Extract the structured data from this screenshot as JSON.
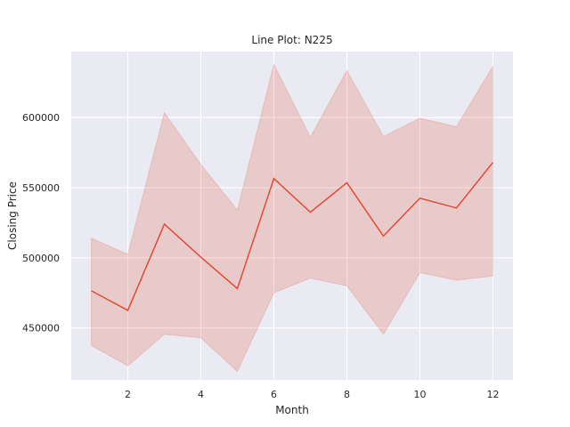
{
  "chart_data": {
    "type": "line",
    "title": "Line Plot: N225",
    "xlabel": "Month",
    "ylabel": "Closing Price",
    "x": [
      1,
      2,
      3,
      4,
      5,
      6,
      7,
      8,
      9,
      10,
      11,
      12
    ],
    "xticks": [
      2,
      4,
      6,
      8,
      10,
      12
    ],
    "yticks": [
      450000,
      500000,
      550000,
      600000
    ],
    "xlim": [
      0.45,
      12.55
    ],
    "ylim": [
      413000,
      647000
    ],
    "grid": true,
    "series": [
      {
        "values": [
          476500,
          462500,
          524000,
          500500,
          478000,
          556500,
          532500,
          553500,
          515500,
          542500,
          535500,
          568000
        ],
        "ci_lower": [
          437500,
          423000,
          445500,
          443000,
          419000,
          475000,
          485500,
          480000,
          445500,
          489500,
          484000,
          487000
        ],
        "ci_upper": [
          514000,
          502500,
          603500,
          566500,
          534000,
          638000,
          586000,
          633500,
          586500,
          599500,
          593500,
          636500
        ],
        "color": "#e24a33"
      }
    ],
    "background_color": "#eaeaf2"
  }
}
